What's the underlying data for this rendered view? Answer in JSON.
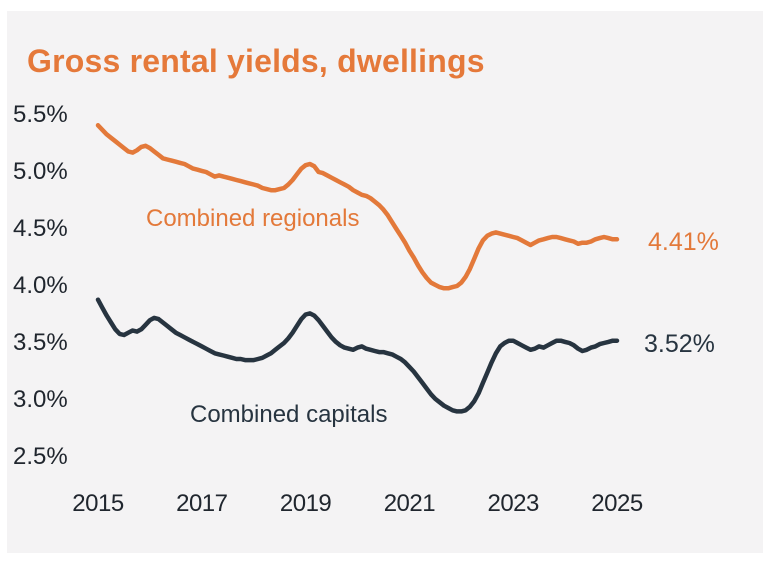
{
  "colors": {
    "orange": "#e3793a",
    "navy": "#273440",
    "panel_background": "#f4f3f4",
    "tick_text": "#20262e"
  },
  "chart_data": {
    "type": "line",
    "title": "Gross rental yields, dwellings",
    "xlabel": "",
    "ylabel": "",
    "grid": false,
    "legend_position": "inline-labels",
    "x_start_year": 2015,
    "x_interval_months": 1,
    "x_end_year": 2025,
    "ylim": [
      2.5,
      5.5
    ],
    "y_ticks": [
      {
        "label": "5.5%",
        "value": 5.5
      },
      {
        "label": "5.0%",
        "value": 5.0
      },
      {
        "label": "4.5%",
        "value": 4.5
      },
      {
        "label": "4.0%",
        "value": 4.0
      },
      {
        "label": "3.5%",
        "value": 3.5
      },
      {
        "label": "3.0%",
        "value": 3.0
      },
      {
        "label": "2.5%",
        "value": 2.5
      }
    ],
    "x_ticks": [
      {
        "label": "2015",
        "year": 2015
      },
      {
        "label": "2017",
        "year": 2017
      },
      {
        "label": "2019",
        "year": 2019
      },
      {
        "label": "2021",
        "year": 2021
      },
      {
        "label": "2023",
        "year": 2023
      },
      {
        "label": "2025",
        "year": 2025
      }
    ],
    "series": [
      {
        "id": "combined-regionals",
        "name": "Combined regionals",
        "color": "#e3793a",
        "end_label": "4.41%",
        "values": [
          5.41,
          5.37,
          5.33,
          5.3,
          5.27,
          5.24,
          5.21,
          5.18,
          5.17,
          5.19,
          5.22,
          5.23,
          5.21,
          5.18,
          5.15,
          5.12,
          5.11,
          5.1,
          5.09,
          5.08,
          5.07,
          5.05,
          5.03,
          5.02,
          5.01,
          5.0,
          4.98,
          4.96,
          4.97,
          4.96,
          4.95,
          4.94,
          4.93,
          4.92,
          4.91,
          4.9,
          4.89,
          4.88,
          4.86,
          4.85,
          4.84,
          4.84,
          4.85,
          4.86,
          4.89,
          4.93,
          4.98,
          5.03,
          5.06,
          5.07,
          5.05,
          5.0,
          4.99,
          4.97,
          4.95,
          4.93,
          4.91,
          4.89,
          4.87,
          4.84,
          4.82,
          4.8,
          4.79,
          4.77,
          4.74,
          4.71,
          4.67,
          4.62,
          4.56,
          4.5,
          4.44,
          4.38,
          4.31,
          4.25,
          4.18,
          4.12,
          4.07,
          4.03,
          4.01,
          3.99,
          3.98,
          3.98,
          3.99,
          4.0,
          4.03,
          4.08,
          4.15,
          4.24,
          4.33,
          4.4,
          4.44,
          4.46,
          4.47,
          4.46,
          4.45,
          4.44,
          4.43,
          4.42,
          4.4,
          4.38,
          4.36,
          4.38,
          4.4,
          4.41,
          4.42,
          4.43,
          4.43,
          4.42,
          4.41,
          4.4,
          4.39,
          4.37,
          4.38,
          4.38,
          4.39,
          4.41,
          4.42,
          4.43,
          4.42,
          4.41,
          4.41
        ]
      },
      {
        "id": "combined-capitals",
        "name": "Combined capitals",
        "color": "#273440",
        "end_label": "3.52%",
        "values": [
          3.88,
          3.81,
          3.74,
          3.68,
          3.62,
          3.58,
          3.57,
          3.59,
          3.61,
          3.6,
          3.62,
          3.66,
          3.7,
          3.72,
          3.71,
          3.68,
          3.65,
          3.62,
          3.59,
          3.57,
          3.55,
          3.53,
          3.51,
          3.49,
          3.47,
          3.45,
          3.43,
          3.41,
          3.4,
          3.39,
          3.38,
          3.37,
          3.36,
          3.36,
          3.35,
          3.35,
          3.35,
          3.36,
          3.37,
          3.39,
          3.41,
          3.44,
          3.47,
          3.5,
          3.54,
          3.59,
          3.65,
          3.71,
          3.75,
          3.76,
          3.74,
          3.7,
          3.65,
          3.6,
          3.55,
          3.51,
          3.48,
          3.46,
          3.45,
          3.44,
          3.46,
          3.47,
          3.45,
          3.44,
          3.43,
          3.42,
          3.42,
          3.41,
          3.4,
          3.38,
          3.36,
          3.33,
          3.29,
          3.25,
          3.2,
          3.15,
          3.1,
          3.05,
          3.01,
          2.98,
          2.95,
          2.93,
          2.91,
          2.9,
          2.9,
          2.91,
          2.94,
          2.99,
          3.06,
          3.15,
          3.24,
          3.33,
          3.41,
          3.47,
          3.5,
          3.52,
          3.52,
          3.5,
          3.48,
          3.46,
          3.44,
          3.45,
          3.47,
          3.46,
          3.48,
          3.5,
          3.52,
          3.52,
          3.51,
          3.5,
          3.48,
          3.45,
          3.43,
          3.44,
          3.46,
          3.47,
          3.49,
          3.5,
          3.51,
          3.52,
          3.52
        ]
      }
    ]
  }
}
